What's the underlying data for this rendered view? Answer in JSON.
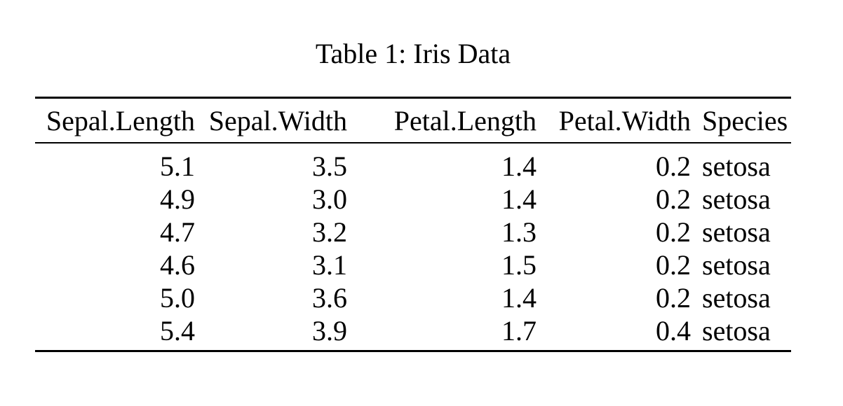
{
  "caption": "Table 1: Iris Data",
  "table": {
    "columns": [
      "Sepal.Length",
      "Sepal.Width",
      "Petal.Length",
      "Petal.Width",
      "Species"
    ],
    "rows": [
      [
        "5.1",
        "3.5",
        "1.4",
        "0.2",
        "setosa"
      ],
      [
        "4.9",
        "3.0",
        "1.4",
        "0.2",
        "setosa"
      ],
      [
        "4.7",
        "3.2",
        "1.3",
        "0.2",
        "setosa"
      ],
      [
        "4.6",
        "3.1",
        "1.5",
        "0.2",
        "setosa"
      ],
      [
        "5.0",
        "3.6",
        "1.4",
        "0.2",
        "setosa"
      ],
      [
        "5.4",
        "3.9",
        "1.7",
        "0.4",
        "setosa"
      ]
    ]
  },
  "colors": {
    "background": "#ffffff",
    "text": "#000000",
    "rule": "#000000"
  }
}
